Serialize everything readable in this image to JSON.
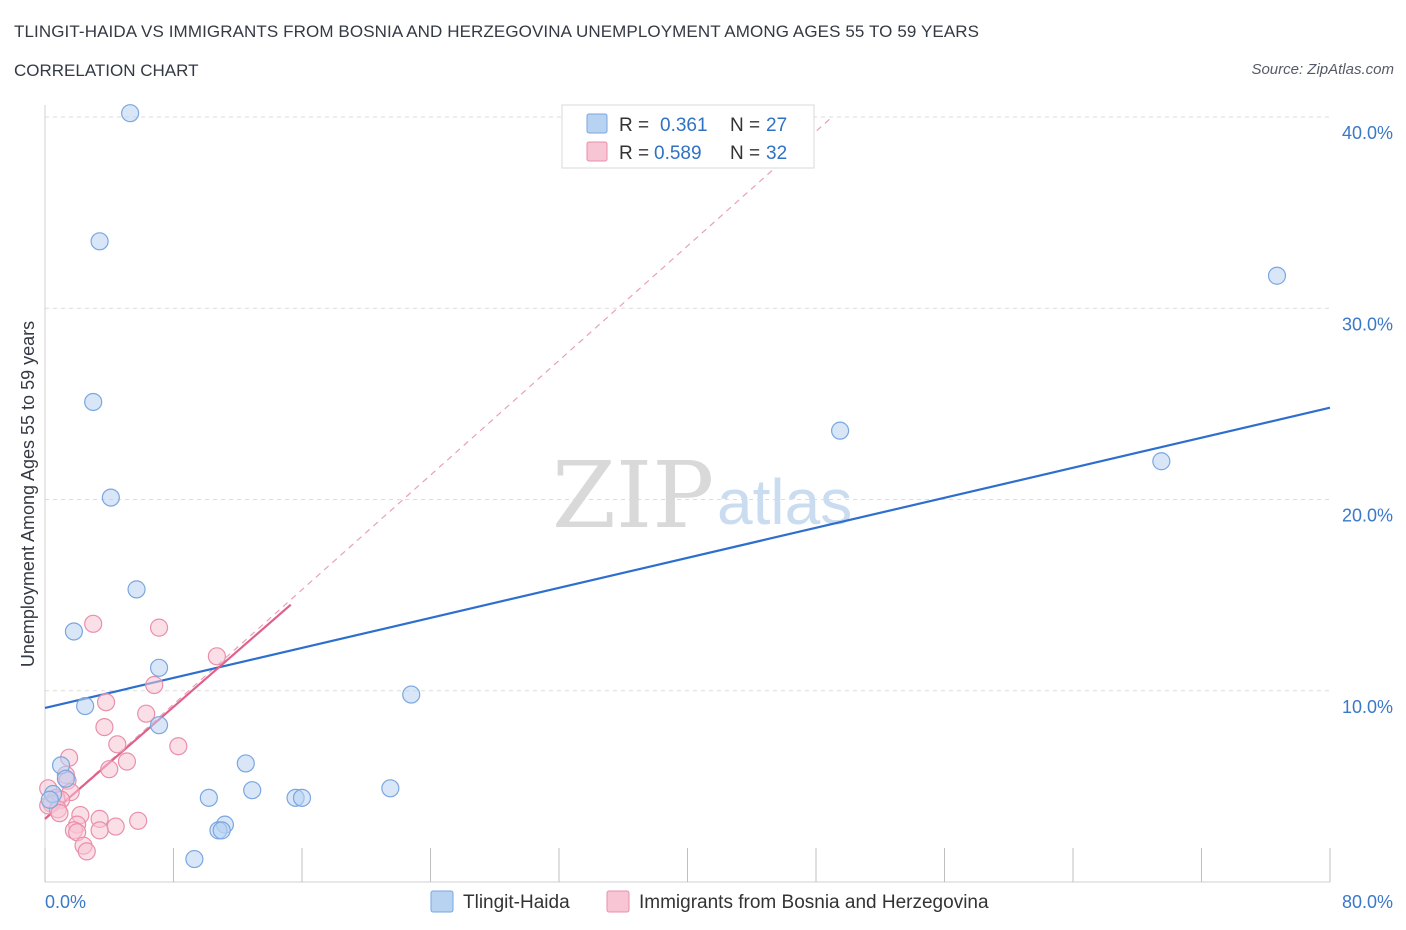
{
  "header": {
    "title": "TLINGIT-HAIDA VS IMMIGRANTS FROM BOSNIA AND HERZEGOVINA UNEMPLOYMENT AMONG AGES 55 TO 59 YEARS",
    "subtitle": "CORRELATION CHART",
    "source": "Source: ZipAtlas.com"
  },
  "watermark": {
    "zip": "ZIP",
    "atlas": "atlas"
  },
  "legend_top": {
    "rows": [
      {
        "r_label": "R =",
        "r_value": "0.361",
        "n_label": "N =",
        "n_value": "27",
        "color": "#b8d2f2",
        "stroke": "#7aa7e0"
      },
      {
        "r_label": "R =",
        "r_value": "0.589",
        "n_label": "N =",
        "n_value": "32",
        "color": "#f7c5d4",
        "stroke": "#e98fac"
      }
    ]
  },
  "legend_bottom": {
    "items": [
      {
        "label": "Tlingit-Haida",
        "color": "#b8d2f2",
        "stroke": "#7aa7e0"
      },
      {
        "label": "Immigrants from Bosnia and Herzegovina",
        "color": "#f7c5d4",
        "stroke": "#e98fac"
      }
    ]
  },
  "chart_data": {
    "type": "scatter",
    "title": "TLINGIT-HAIDA VS IMMIGRANTS FROM BOSNIA AND HERZEGOVINA UNEMPLOYMENT AMONG AGES 55 TO 59 YEARS",
    "xlabel": "",
    "ylabel": "Unemployment Among Ages 55 to 59 years",
    "xlim": [
      0,
      80
    ],
    "ylim": [
      0,
      40
    ],
    "x_tick_labels": [
      "0.0%",
      "80.0%"
    ],
    "y_ticks": [
      10,
      20,
      30,
      40
    ],
    "y_tick_labels": [
      "10.0%",
      "20.0%",
      "30.0%",
      "40.0%"
    ],
    "series": [
      {
        "name": "Tlingit-Haida",
        "color": "#7aa7e0",
        "fill": "#b8d2f2",
        "trend": {
          "x": [
            0,
            80
          ],
          "y": [
            9.1,
            24.8
          ],
          "color": "#2e6fce"
        },
        "points": [
          [
            5.3,
            40.2
          ],
          [
            3.4,
            33.5
          ],
          [
            3.0,
            25.1
          ],
          [
            4.1,
            20.1
          ],
          [
            5.7,
            15.3
          ],
          [
            1.8,
            13.1
          ],
          [
            7.1,
            11.2
          ],
          [
            7.1,
            8.2
          ],
          [
            2.5,
            9.2
          ],
          [
            1.0,
            6.1
          ],
          [
            1.3,
            5.4
          ],
          [
            0.5,
            4.6
          ],
          [
            0.3,
            4.3
          ],
          [
            12.5,
            6.2
          ],
          [
            12.9,
            4.8
          ],
          [
            10.2,
            4.4
          ],
          [
            11.2,
            3.0
          ],
          [
            10.8,
            2.7
          ],
          [
            9.3,
            1.2
          ],
          [
            15.6,
            4.4
          ],
          [
            16.0,
            4.4
          ],
          [
            21.5,
            4.9
          ],
          [
            22.8,
            9.8
          ],
          [
            49.5,
            23.6
          ],
          [
            69.5,
            22.0
          ],
          [
            76.7,
            31.7
          ],
          [
            11.0,
            2.7
          ]
        ]
      },
      {
        "name": "Immigrants from Bosnia and Herzegovina",
        "color": "#e98fac",
        "fill": "#f7c5d4",
        "trend": {
          "x": [
            0,
            15.3
          ],
          "y": [
            3.3,
            14.5
          ],
          "color": "#e0608a"
        },
        "trend_extended": {
          "x": [
            0,
            49
          ],
          "y": [
            3.3,
            40.0
          ],
          "color": "#e8a1b8"
        },
        "points": [
          [
            3.0,
            13.5
          ],
          [
            7.1,
            13.3
          ],
          [
            10.7,
            11.8
          ],
          [
            6.8,
            10.3
          ],
          [
            3.8,
            9.4
          ],
          [
            6.3,
            8.8
          ],
          [
            3.7,
            8.1
          ],
          [
            8.3,
            7.1
          ],
          [
            4.5,
            7.2
          ],
          [
            1.5,
            6.5
          ],
          [
            5.1,
            6.3
          ],
          [
            4.0,
            5.9
          ],
          [
            1.3,
            5.6
          ],
          [
            1.4,
            5.3
          ],
          [
            0.2,
            4.9
          ],
          [
            1.6,
            4.7
          ],
          [
            0.7,
            4.4
          ],
          [
            1.0,
            4.3
          ],
          [
            0.4,
            4.1
          ],
          [
            0.2,
            4.0
          ],
          [
            0.8,
            3.8
          ],
          [
            0.9,
            3.6
          ],
          [
            2.2,
            3.5
          ],
          [
            3.4,
            3.3
          ],
          [
            5.8,
            3.2
          ],
          [
            2.0,
            3.0
          ],
          [
            4.4,
            2.9
          ],
          [
            1.8,
            2.7
          ],
          [
            3.4,
            2.7
          ],
          [
            2.0,
            2.6
          ],
          [
            2.4,
            1.9
          ],
          [
            2.6,
            1.6
          ]
        ]
      }
    ]
  }
}
